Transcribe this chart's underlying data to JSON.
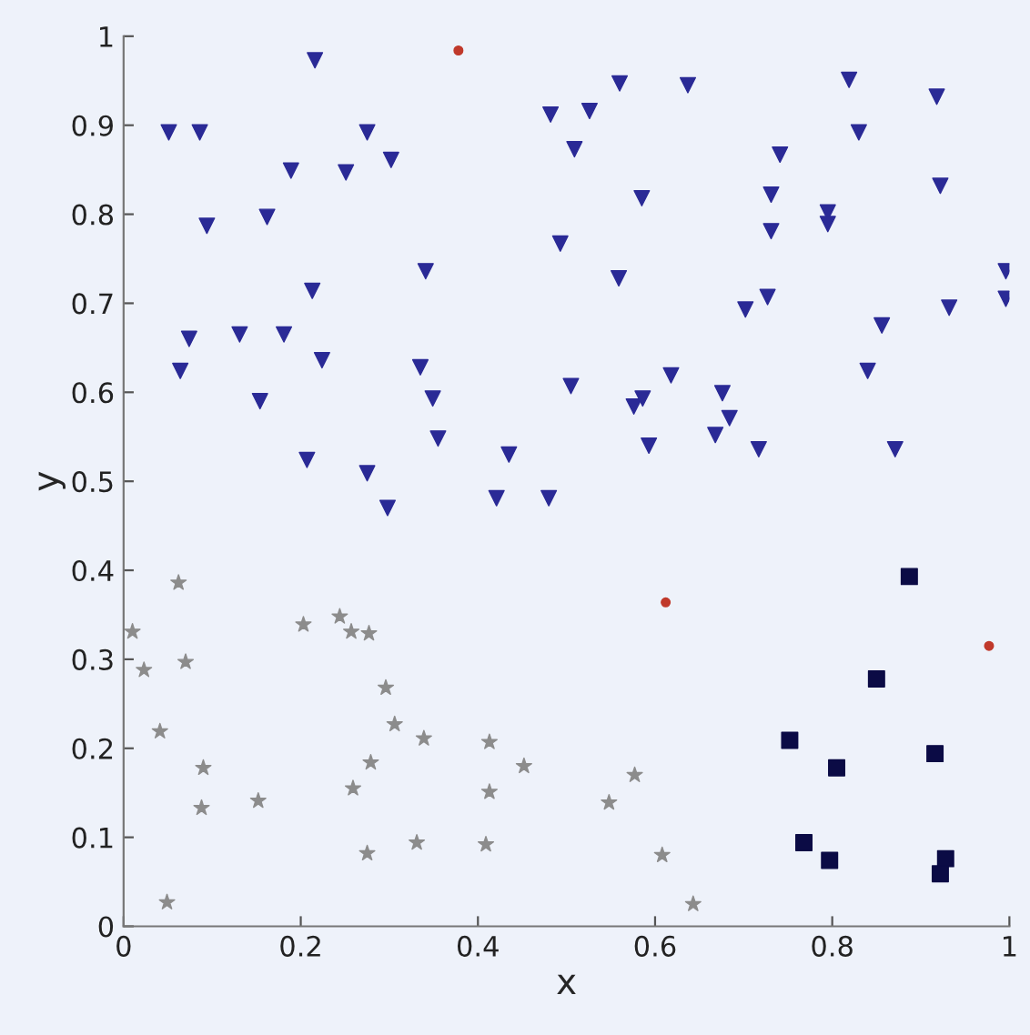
{
  "chart_data": {
    "type": "scatter",
    "xlabel": "x",
    "ylabel": "y",
    "xlim": [
      0,
      1
    ],
    "ylim": [
      0,
      1
    ],
    "xticks": [
      0,
      0.2,
      0.4,
      0.6,
      0.8,
      1
    ],
    "yticks": [
      0,
      0.1,
      0.2,
      0.3,
      0.4,
      0.5,
      0.6,
      0.7,
      0.8,
      0.9,
      1
    ],
    "grid": false,
    "legend": false,
    "series": [
      {
        "color": "#2a2a96",
        "marker": "triangle",
        "x": [
          0.56,
          0.637,
          0.819,
          0.918,
          0.482,
          0.526,
          0.83,
          0.509,
          0.741,
          0.585,
          0.731,
          0.731,
          0.795,
          0.795,
          0.922,
          0.493,
          0.559,
          0.996,
          0.996,
          0.932,
          0.702,
          0.727,
          0.856,
          0.505,
          0.618,
          0.576,
          0.586,
          0.676,
          0.84,
          0.684,
          0.668,
          0.593,
          0.717,
          0.871,
          0.051,
          0.086,
          0.216,
          0.275,
          0.302,
          0.189,
          0.251,
          0.094,
          0.162,
          0.341,
          0.213,
          0.074,
          0.131,
          0.181,
          0.064,
          0.224,
          0.335,
          0.154,
          0.349,
          0.355,
          0.207,
          0.275,
          0.435,
          0.298,
          0.421,
          0.48
        ],
        "values": [
          0.947,
          0.945,
          0.951,
          0.932,
          0.912,
          0.916,
          0.892,
          0.873,
          0.867,
          0.818,
          0.822,
          0.781,
          0.802,
          0.789,
          0.832,
          0.767,
          0.728,
          0.736,
          0.705,
          0.695,
          0.693,
          0.707,
          0.675,
          0.607,
          0.619,
          0.584,
          0.593,
          0.599,
          0.624,
          0.571,
          0.552,
          0.54,
          0.536,
          0.536,
          0.892,
          0.892,
          0.973,
          0.892,
          0.861,
          0.849,
          0.847,
          0.787,
          0.797,
          0.736,
          0.714,
          0.66,
          0.665,
          0.665,
          0.624,
          0.636,
          0.628,
          0.59,
          0.593,
          0.548,
          0.524,
          0.509,
          0.53,
          0.47,
          0.481,
          0.481
        ]
      },
      {
        "color": "#8c8c8c",
        "marker": "star",
        "x": [
          0.062,
          0.01,
          0.023,
          0.07,
          0.203,
          0.244,
          0.257,
          0.277,
          0.296,
          0.306,
          0.339,
          0.041,
          0.09,
          0.279,
          0.413,
          0.452,
          0.088,
          0.152,
          0.259,
          0.413,
          0.331,
          0.275,
          0.409,
          0.049,
          0.577,
          0.548,
          0.608,
          0.643
        ],
        "values": [
          0.386,
          0.331,
          0.288,
          0.297,
          0.339,
          0.348,
          0.331,
          0.329,
          0.268,
          0.227,
          0.211,
          0.219,
          0.178,
          0.184,
          0.207,
          0.18,
          0.133,
          0.141,
          0.155,
          0.151,
          0.094,
          0.082,
          0.092,
          0.027,
          0.17,
          0.139,
          0.08,
          0.025
        ]
      },
      {
        "color": "#0b0b45",
        "marker": "square",
        "x": [
          0.887,
          0.85,
          0.752,
          0.805,
          0.916,
          0.768,
          0.797,
          0.928,
          0.922
        ],
        "values": [
          0.393,
          0.278,
          0.209,
          0.178,
          0.194,
          0.094,
          0.074,
          0.076,
          0.059
        ]
      },
      {
        "color": "#c0392b",
        "marker": "circle",
        "x": [
          0.378,
          0.612,
          0.977
        ],
        "values": [
          0.984,
          0.364,
          0.315
        ]
      }
    ]
  }
}
